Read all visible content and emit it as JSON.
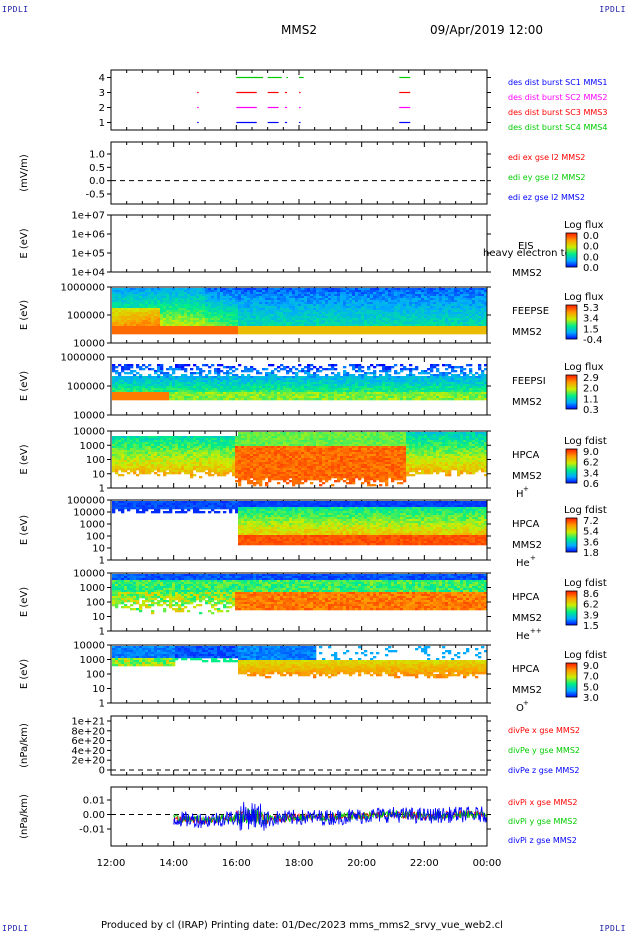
{
  "corner_label": "IPDLI",
  "header": {
    "title": "MMS2",
    "date": "09/Apr/2019 12:00"
  },
  "footer": "Produced by cl (IRAP)    Printing date: 01/Dec/2023    mms_mms2_srvy_vue_web2.cl",
  "x_axis": {
    "ticks": [
      "12:00",
      "14:00",
      "16:00",
      "18:00",
      "20:00",
      "22:00",
      "00:00"
    ]
  },
  "colors": {
    "c1": "#0000ff",
    "c2": "#ff00ff",
    "c3": "#ff0000",
    "c4": "#00cc00",
    "fill_scale": [
      "#0000ff",
      "#00aaff",
      "#00ee88",
      "#ccee00",
      "#ff9900",
      "#ff2200"
    ]
  },
  "chart_data": [
    {
      "type": "scatter",
      "id": "burst",
      "ylim": [
        0.5,
        4.5
      ],
      "yticks": [
        "1",
        "2",
        "3",
        "4"
      ],
      "xlim": [
        12,
        24
      ],
      "series": [
        {
          "name": "des dist burst SC1 MMS1",
          "y": 1,
          "segments": [
            [
              14.75,
              14.78
            ],
            [
              16.0,
              16.65
            ],
            [
              17.0,
              17.35
            ],
            [
              17.55,
              17.62
            ],
            [
              18.0,
              18.05
            ],
            [
              21.2,
              21.55
            ]
          ]
        },
        {
          "name": "des dist burst SC2 MMS2",
          "y": 2,
          "segments": [
            [
              14.75,
              14.78
            ],
            [
              16.0,
              16.65
            ],
            [
              17.0,
              17.35
            ],
            [
              17.55,
              17.62
            ],
            [
              18.0,
              18.05
            ],
            [
              21.2,
              21.55
            ]
          ]
        },
        {
          "name": "des dist burst SC3 MMS3",
          "y": 3,
          "segments": [
            [
              14.75,
              14.78
            ],
            [
              16.0,
              16.65
            ],
            [
              17.0,
              17.35
            ],
            [
              17.55,
              17.62
            ],
            [
              18.0,
              18.05
            ],
            [
              21.2,
              21.55
            ]
          ]
        },
        {
          "name": "des dist burst SC4 MMS4",
          "y": 4,
          "segments": [
            [
              16.0,
              16.85
            ],
            [
              17.0,
              17.45
            ],
            [
              17.6,
              17.65
            ],
            [
              18.0,
              18.15
            ],
            [
              21.2,
              21.55
            ]
          ]
        }
      ]
    },
    {
      "type": "line",
      "id": "edi",
      "ylabel": "(mV/m)",
      "yticks": [
        "1.0",
        "0.5",
        "0.0",
        "-0.5"
      ],
      "ylim": [
        -0.75,
        1.25
      ],
      "legend": [
        "edi ex gse l2 MMS2",
        "edi ey gse l2 MMS2",
        "edi ez gse l2 MMS2"
      ]
    },
    {
      "type": "heatmap",
      "id": "eis",
      "ylabel": "E (eV)",
      "yscale": "log",
      "yticks": [
        "1e+07",
        "1e+06",
        "1e+05",
        "1e+04"
      ],
      "instrument": "EIS",
      "overlay_text": "heavy electron to",
      "spacecraft": "MMS2",
      "cbar_title": "Log flux",
      "cbar_ticks": [
        "0.0",
        "0.0",
        "0.0",
        "0.0"
      ]
    },
    {
      "type": "heatmap",
      "id": "feepse",
      "ylabel": "E (eV)",
      "yscale": "log",
      "yticks": [
        "1000000",
        "100000",
        "10000"
      ],
      "instrument": "FEEPSE",
      "spacecraft": "MMS2",
      "cbar_title": "Log flux",
      "cbar_ticks": [
        "5.3",
        "3.4",
        "1.5",
        "-0.4"
      ]
    },
    {
      "type": "heatmap",
      "id": "feepsi",
      "ylabel": "E (eV)",
      "yscale": "log",
      "yticks": [
        "1000000",
        "100000",
        "10000"
      ],
      "instrument": "FEEPSI",
      "spacecraft": "MMS2",
      "cbar_title": "Log flux",
      "cbar_ticks": [
        "2.9",
        "2.0",
        "1.1",
        "0.3"
      ]
    },
    {
      "type": "heatmap",
      "id": "hpca_h",
      "ylabel": "E (eV)",
      "yscale": "log",
      "yticks": [
        "10000",
        "1000",
        "100",
        "10",
        "1"
      ],
      "instrument": "HPCA",
      "spacecraft": "MMS2",
      "species": "H",
      "charge": "+",
      "cbar_title": "Log fdist",
      "cbar_ticks": [
        "9.0",
        "6.2",
        "3.4",
        "0.6"
      ]
    },
    {
      "type": "heatmap",
      "id": "hpca_he1",
      "ylabel": "E (eV)",
      "yscale": "log",
      "yticks": [
        "100000",
        "10000",
        "1000",
        "100",
        "10",
        "1"
      ],
      "instrument": "HPCA",
      "spacecraft": "MMS2",
      "species": "He",
      "charge": "+",
      "cbar_title": "Log fdist",
      "cbar_ticks": [
        "7.2",
        "5.4",
        "3.6",
        "1.8"
      ]
    },
    {
      "type": "heatmap",
      "id": "hpca_he2",
      "ylabel": "E (eV)",
      "yscale": "log",
      "yticks": [
        "10000",
        "1000",
        "100",
        "10",
        "1"
      ],
      "instrument": "HPCA",
      "spacecraft": "MMS2",
      "species": "He",
      "charge": "++",
      "cbar_title": "Log fdist",
      "cbar_ticks": [
        "8.6",
        "6.2",
        "3.9",
        "1.5"
      ]
    },
    {
      "type": "heatmap",
      "id": "hpca_o",
      "ylabel": "E (eV)",
      "yscale": "log",
      "yticks": [
        "10000",
        "1000",
        "100",
        "10",
        "1"
      ],
      "instrument": "HPCA",
      "spacecraft": "MMS2",
      "species": "O",
      "charge": "+",
      "cbar_title": "Log fdist",
      "cbar_ticks": [
        "9.0",
        "7.0",
        "5.0",
        "3.0"
      ]
    },
    {
      "type": "line",
      "id": "divpe",
      "ylabel": "(nPa/km)",
      "yticks": [
        "1e+21",
        "8e+20",
        "6e+20",
        "4e+20",
        "2e+20",
        "0"
      ],
      "legend": [
        "divPe x gse MMS2",
        "divPe y gse MMS2",
        "divPe z gse MMS2"
      ]
    },
    {
      "type": "line",
      "id": "divpi",
      "ylabel": "(nPa/km)",
      "yticks": [
        "0.01",
        "0.00",
        "-0.01"
      ],
      "ylim": [
        -0.015,
        0.015
      ],
      "xlim": [
        12,
        24
      ],
      "legend": [
        "divPi x gse MMS2",
        "divPi y gse MMS2",
        "divPi z gse MMS2"
      ],
      "series": [
        {
          "name": "divPi z gse MMS2",
          "approx": [
            [
              14.0,
              -0.003
            ],
            [
              15.0,
              -0.004
            ],
            [
              16.0,
              -0.002
            ],
            [
              16.5,
              0.0
            ],
            [
              17.0,
              -0.003
            ],
            [
              18.0,
              -0.002
            ],
            [
              19.0,
              -0.002
            ],
            [
              20.0,
              -0.001
            ],
            [
              21.0,
              0.0
            ],
            [
              22.0,
              -0.001
            ],
            [
              23.0,
              0.0
            ],
            [
              24.0,
              0.0
            ]
          ]
        }
      ]
    }
  ]
}
